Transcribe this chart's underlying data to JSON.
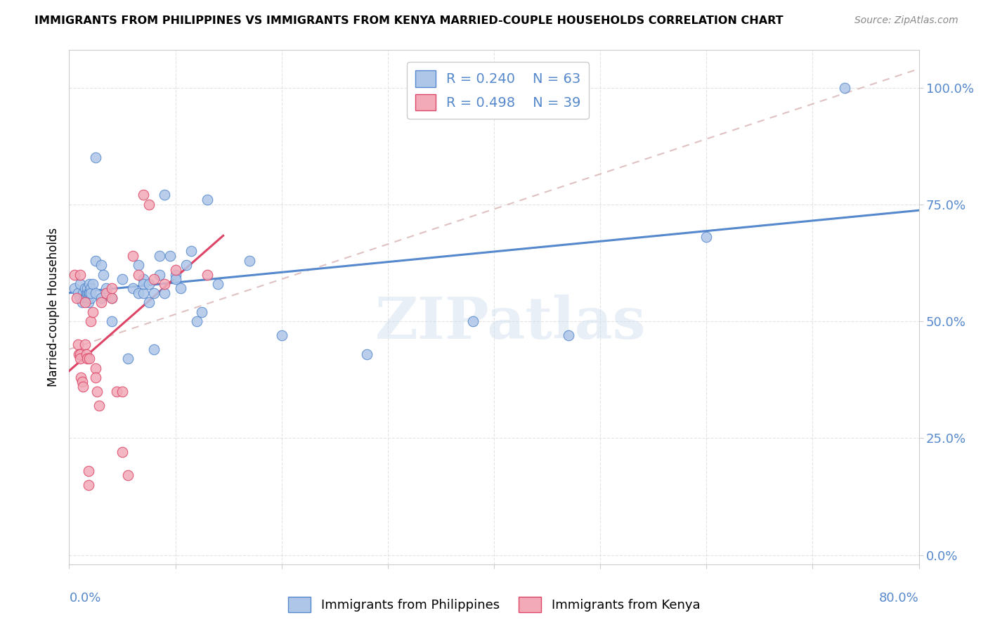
{
  "title": "IMMIGRANTS FROM PHILIPPINES VS IMMIGRANTS FROM KENYA MARRIED-COUPLE HOUSEHOLDS CORRELATION CHART",
  "source": "Source: ZipAtlas.com",
  "ylabel": "Married-couple Households",
  "yticks_labels": [
    "0.0%",
    "25.0%",
    "50.0%",
    "75.0%",
    "100.0%"
  ],
  "ytick_vals": [
    0.0,
    0.25,
    0.5,
    0.75,
    1.0
  ],
  "xlim": [
    0.0,
    0.8
  ],
  "ylim": [
    -0.02,
    1.08
  ],
  "R_philippines": 0.24,
  "N_philippines": 63,
  "R_kenya": 0.498,
  "N_kenya": 39,
  "color_philippines": "#aec6e8",
  "color_kenya": "#f2aab8",
  "line_color_philippines": "#5588cc",
  "line_color_kenya": "#dd4466",
  "trendline_dashed_color": "#ddbbbb",
  "watermark": "ZIPatlas",
  "philippines_x": [
    0.005,
    0.008,
    0.01,
    0.01,
    0.012,
    0.013,
    0.015,
    0.015,
    0.016,
    0.016,
    0.017,
    0.017,
    0.018,
    0.018,
    0.018,
    0.019,
    0.019,
    0.02,
    0.02,
    0.02,
    0.022,
    0.025,
    0.025,
    0.025,
    0.03,
    0.03,
    0.032,
    0.035,
    0.04,
    0.04,
    0.05,
    0.055,
    0.06,
    0.065,
    0.065,
    0.07,
    0.07,
    0.07,
    0.075,
    0.075,
    0.08,
    0.08,
    0.085,
    0.085,
    0.09,
    0.09,
    0.095,
    0.1,
    0.1,
    0.105,
    0.11,
    0.115,
    0.12,
    0.125,
    0.13,
    0.14,
    0.17,
    0.2,
    0.28,
    0.38,
    0.47,
    0.6,
    0.73
  ],
  "philippines_y": [
    0.57,
    0.56,
    0.55,
    0.58,
    0.54,
    0.56,
    0.57,
    0.55,
    0.56,
    0.55,
    0.56,
    0.57,
    0.54,
    0.56,
    0.55,
    0.58,
    0.56,
    0.57,
    0.55,
    0.56,
    0.58,
    0.63,
    0.85,
    0.56,
    0.55,
    0.62,
    0.6,
    0.57,
    0.55,
    0.5,
    0.59,
    0.42,
    0.57,
    0.62,
    0.56,
    0.59,
    0.56,
    0.58,
    0.54,
    0.58,
    0.44,
    0.56,
    0.6,
    0.64,
    0.77,
    0.56,
    0.64,
    0.6,
    0.59,
    0.57,
    0.62,
    0.65,
    0.5,
    0.52,
    0.76,
    0.58,
    0.63,
    0.47,
    0.43,
    0.5,
    0.47,
    0.68,
    1.0
  ],
  "kenya_x": [
    0.005,
    0.007,
    0.008,
    0.009,
    0.01,
    0.01,
    0.01,
    0.011,
    0.012,
    0.013,
    0.015,
    0.015,
    0.016,
    0.017,
    0.018,
    0.018,
    0.019,
    0.02,
    0.022,
    0.025,
    0.025,
    0.026,
    0.028,
    0.03,
    0.035,
    0.04,
    0.04,
    0.045,
    0.05,
    0.05,
    0.055,
    0.06,
    0.065,
    0.07,
    0.075,
    0.08,
    0.09,
    0.1,
    0.13
  ],
  "kenya_y": [
    0.6,
    0.55,
    0.45,
    0.43,
    0.43,
    0.42,
    0.6,
    0.38,
    0.37,
    0.36,
    0.54,
    0.45,
    0.43,
    0.42,
    0.18,
    0.15,
    0.42,
    0.5,
    0.52,
    0.4,
    0.38,
    0.35,
    0.32,
    0.54,
    0.56,
    0.55,
    0.57,
    0.35,
    0.35,
    0.22,
    0.17,
    0.64,
    0.6,
    0.77,
    0.75,
    0.59,
    0.58,
    0.61,
    0.6
  ]
}
